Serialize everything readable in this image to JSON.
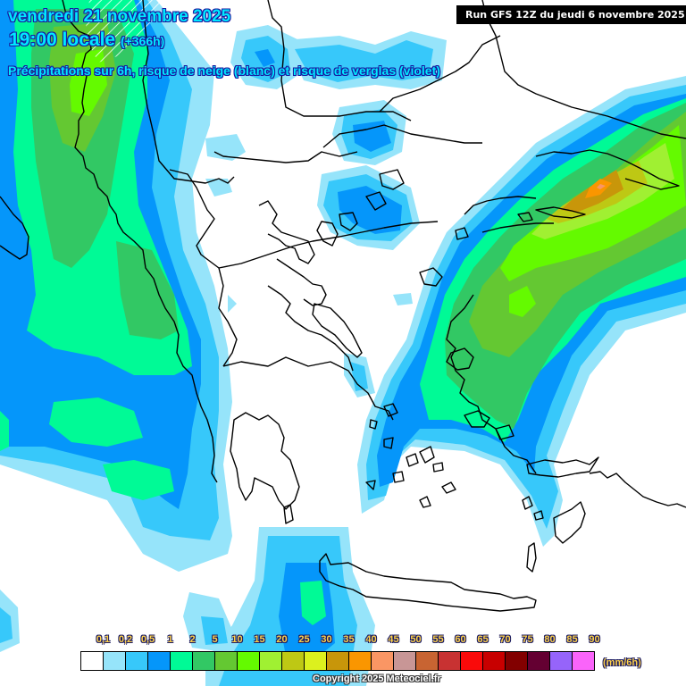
{
  "header": {
    "date": "vendredi 21 novembre 2025",
    "time": "19:00 locale",
    "lead": "(+366h)",
    "subtitle": "Précipitations sur 6h, risque de neige (blanc) et risque de verglas (violet)",
    "run": "Run GFS 12Z du jeudi 6 novembre 2025"
  },
  "legend": {
    "unit": "(mm/6h)",
    "labels": [
      "0,1",
      "0,2",
      "0,5",
      "1",
      "2",
      "5",
      "10",
      "15",
      "20",
      "25",
      "30",
      "35",
      "40",
      "45",
      "50",
      "55",
      "60",
      "65",
      "70",
      "75",
      "80",
      "85",
      "90"
    ],
    "colors": [
      "#ffffff",
      "#96e4fa",
      "#37c8fa",
      "#0596fa",
      "#00fa96",
      "#32c864",
      "#64c832",
      "#64fa00",
      "#a0f032",
      "#bec814",
      "#dcf01e",
      "#c8960a",
      "#fa9600",
      "#fa9664",
      "#c89696",
      "#c86432",
      "#c83232",
      "#fa0a0a",
      "#c80000",
      "#820000",
      "#640032",
      "#9664fa",
      "#fa64fa"
    ]
  },
  "copyright": "Copyright 2025 Meteociel.fr",
  "map": {
    "region": "Grèce / mer Égée",
    "snow_hatch_color": "#ffffff",
    "border_color": "#000000"
  }
}
